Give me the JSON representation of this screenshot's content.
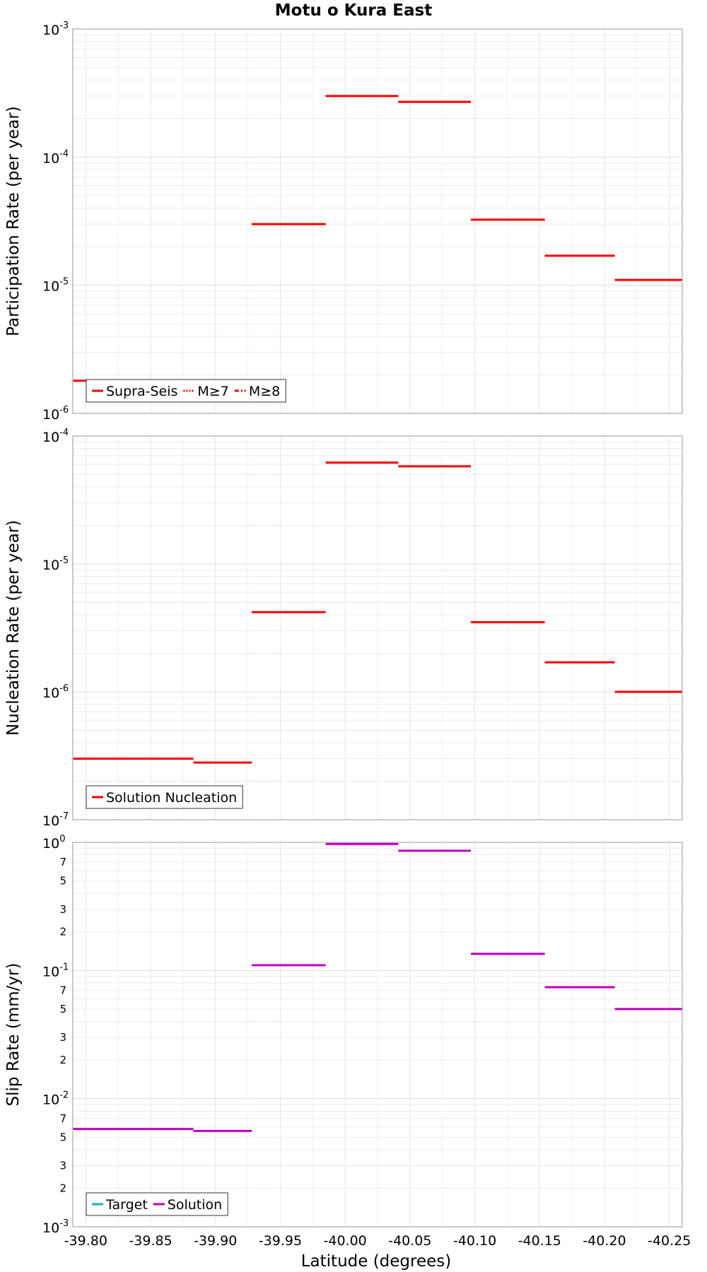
{
  "title": "Motu o Kura East",
  "chart_data": [
    {
      "id": "participation",
      "type": "line",
      "ylabel": "Participation Rate (per year)",
      "yscale": "log",
      "ylim": [
        1e-06,
        0.001
      ],
      "ylim_exponents": [
        -6,
        -3
      ],
      "y_major_ticks": [
        {
          "base": "10",
          "exp": "-6"
        },
        {
          "base": "10",
          "exp": "-5"
        },
        {
          "base": "10",
          "exp": "-4"
        },
        {
          "base": "10",
          "exp": "-3"
        }
      ],
      "y_minor_ticks": [],
      "xlim": [
        -39.79,
        -40.26
      ],
      "grid": true,
      "legend_position": "bottom-left",
      "legend": [
        {
          "label": "Supra-Seis",
          "style": "solid",
          "color": "#ff0000"
        },
        {
          "label": "M≥7",
          "style": "dotted",
          "color": "#ff0000"
        },
        {
          "label": "M≥8",
          "style": "dashdot",
          "color": "#ff0000"
        }
      ],
      "series": [
        {
          "name": "Supra-Seis",
          "color": "#ff0000",
          "style": "solid",
          "segments": [
            {
              "x": [
                -39.79,
                -39.883
              ],
              "y": 1.8e-06
            },
            {
              "x": [
                -39.883,
                -39.928
              ],
              "y": 1.72e-06
            },
            {
              "x": [
                -39.928,
                -39.985
              ],
              "y": 3e-05
            },
            {
              "x": [
                -39.985,
                -40.041
              ],
              "y": 0.0003
            },
            {
              "x": [
                -40.041,
                -40.097
              ],
              "y": 0.00027
            },
            {
              "x": [
                -40.097,
                -40.154
              ],
              "y": 3.25e-05
            },
            {
              "x": [
                -40.154,
                -40.208
              ],
              "y": 1.7e-05
            },
            {
              "x": [
                -40.208,
                -40.26
              ],
              "y": 1.1e-05
            }
          ]
        },
        {
          "name": "M≥7",
          "color": "#ff0000",
          "style": "dotted",
          "segments": [
            {
              "x": [
                -39.79,
                -39.883
              ],
              "y": 1.8e-06
            },
            {
              "x": [
                -39.928,
                -39.985
              ],
              "y": 3e-05
            },
            {
              "x": [
                -39.985,
                -40.041
              ],
              "y": 0.0003
            },
            {
              "x": [
                -40.041,
                -40.097
              ],
              "y": 0.00027
            },
            {
              "x": [
                -40.097,
                -40.154
              ],
              "y": 3.25e-05
            },
            {
              "x": [
                -40.154,
                -40.208
              ],
              "y": 1.7e-05
            },
            {
              "x": [
                -40.208,
                -40.26
              ],
              "y": 1.1e-05
            }
          ]
        }
      ]
    },
    {
      "id": "nucleation",
      "type": "line",
      "ylabel": "Nucleation Rate (per year)",
      "yscale": "log",
      "ylim": [
        1e-07,
        0.0001
      ],
      "ylim_exponents": [
        -7,
        -4
      ],
      "y_major_ticks": [
        {
          "base": "10",
          "exp": "-7"
        },
        {
          "base": "10",
          "exp": "-6"
        },
        {
          "base": "10",
          "exp": "-5"
        },
        {
          "base": "10",
          "exp": "-4"
        }
      ],
      "y_minor_ticks": [],
      "xlim": [
        -39.79,
        -40.26
      ],
      "grid": true,
      "legend_position": "bottom-left",
      "legend": [
        {
          "label": "Solution Nucleation",
          "style": "solid",
          "color": "#ff0000"
        }
      ],
      "series": [
        {
          "name": "Solution Nucleation",
          "color": "#ff0000",
          "style": "solid",
          "segments": [
            {
              "x": [
                -39.79,
                -39.883
              ],
              "y": 3e-07
            },
            {
              "x": [
                -39.883,
                -39.928
              ],
              "y": 2.8e-07
            },
            {
              "x": [
                -39.928,
                -39.985
              ],
              "y": 4.2e-06
            },
            {
              "x": [
                -39.985,
                -40.041
              ],
              "y": 6.2e-05
            },
            {
              "x": [
                -40.041,
                -40.097
              ],
              "y": 5.8e-05
            },
            {
              "x": [
                -40.097,
                -40.154
              ],
              "y": 3.5e-06
            },
            {
              "x": [
                -40.154,
                -40.208
              ],
              "y": 1.7e-06
            },
            {
              "x": [
                -40.208,
                -40.26
              ],
              "y": 1e-06
            }
          ]
        }
      ]
    },
    {
      "id": "slip",
      "type": "line",
      "ylabel": "Slip Rate (mm/yr)",
      "xlabel": "Latitude (degrees)",
      "yscale": "log",
      "ylim": [
        0.001,
        1
      ],
      "ylim_exponents": [
        -3,
        0
      ],
      "y_major_ticks": [
        {
          "base": "10",
          "exp": "-3"
        },
        {
          "base": "10",
          "exp": "-2"
        },
        {
          "base": "10",
          "exp": "-1"
        },
        {
          "base": "10",
          "exp": "0"
        }
      ],
      "y_minor_ticks": [
        {
          "label": "2",
          "value": 0.002
        },
        {
          "label": "3",
          "value": 0.003
        },
        {
          "label": "5",
          "value": 0.005
        },
        {
          "label": "7",
          "value": 0.007
        },
        {
          "label": "2",
          "value": 0.02
        },
        {
          "label": "3",
          "value": 0.03
        },
        {
          "label": "5",
          "value": 0.05
        },
        {
          "label": "7",
          "value": 0.07
        },
        {
          "label": "2",
          "value": 0.2
        },
        {
          "label": "3",
          "value": 0.3
        },
        {
          "label": "5",
          "value": 0.5
        },
        {
          "label": "7",
          "value": 0.7
        }
      ],
      "xlim": [
        -39.79,
        -40.26
      ],
      "x_ticks": [
        "-39.80",
        "-39.85",
        "-39.90",
        "-39.95",
        "-40.00",
        "-40.05",
        "-40.10",
        "-40.15",
        "-40.20",
        "-40.25"
      ],
      "x_tick_values": [
        -39.8,
        -39.85,
        -39.9,
        -39.95,
        -40.0,
        -40.05,
        -40.1,
        -40.15,
        -40.2,
        -40.25
      ],
      "grid": true,
      "legend_position": "bottom-left",
      "legend": [
        {
          "label": "Target",
          "style": "solid",
          "color": "#20b2aa"
        },
        {
          "label": "Solution",
          "style": "solid",
          "color": "#c000c0"
        }
      ],
      "series": [
        {
          "name": "Solution",
          "color": "#c000c0",
          "style": "solid",
          "segments": [
            {
              "x": [
                -39.79,
                -39.883
              ],
              "y": 0.0058
            },
            {
              "x": [
                -39.883,
                -39.928
              ],
              "y": 0.0056
            },
            {
              "x": [
                -39.928,
                -39.985
              ],
              "y": 0.11
            },
            {
              "x": [
                -39.985,
                -40.041
              ],
              "y": 0.97
            },
            {
              "x": [
                -40.041,
                -40.097
              ],
              "y": 0.86
            },
            {
              "x": [
                -40.097,
                -40.154
              ],
              "y": 0.135
            },
            {
              "x": [
                -40.154,
                -40.208
              ],
              "y": 0.074
            },
            {
              "x": [
                -40.208,
                -40.26
              ],
              "y": 0.05
            }
          ]
        }
      ]
    }
  ]
}
